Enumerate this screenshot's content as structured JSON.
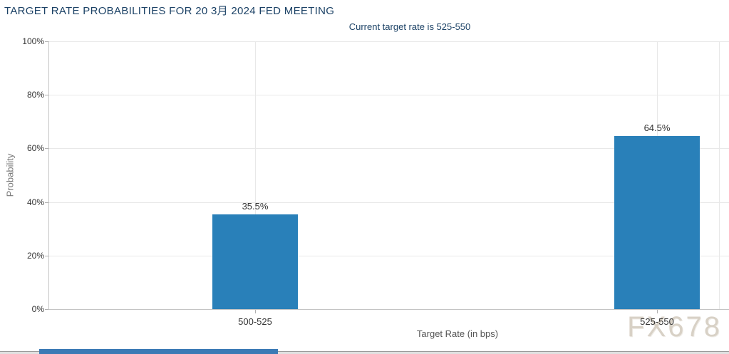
{
  "page": {
    "title": "TARGET RATE PROBABILITIES FOR 20 3月 2024 FED MEETING",
    "subtitle": "Current target rate is 525-550",
    "watermark": "FX678"
  },
  "chart_data": {
    "type": "bar",
    "title": "TARGET RATE PROBABILITIES FOR 20 3月 2024 FED MEETING",
    "subtitle": "Current target rate is 525-550",
    "categories": [
      "500-525",
      "525-550"
    ],
    "values": [
      35.5,
      64.5
    ],
    "data_labels": [
      "35.5%",
      "64.5%"
    ],
    "xlabel": "Target Rate (in bps)",
    "ylabel": "Probability",
    "ylim": [
      0,
      100
    ],
    "ytick_values": [
      0,
      20,
      40,
      60,
      80,
      100
    ],
    "ytick_labels": [
      "0%",
      "20%",
      "40%",
      "60%",
      "80%",
      "100%"
    ],
    "grid": true,
    "legend": "none",
    "bar_color": "#2980b9"
  },
  "colors": {
    "title_text": "#1c4266",
    "bar": "#2980b9",
    "gridline": "#e8e8e8",
    "axis_line": "#c4c4c4",
    "tick_text": "#333333",
    "axis_title_text": "#777777",
    "watermark": "#d8d1c6",
    "scrollbar_thumb": "#3b7ab5",
    "scrollbar_track": "#e0e0e0"
  }
}
